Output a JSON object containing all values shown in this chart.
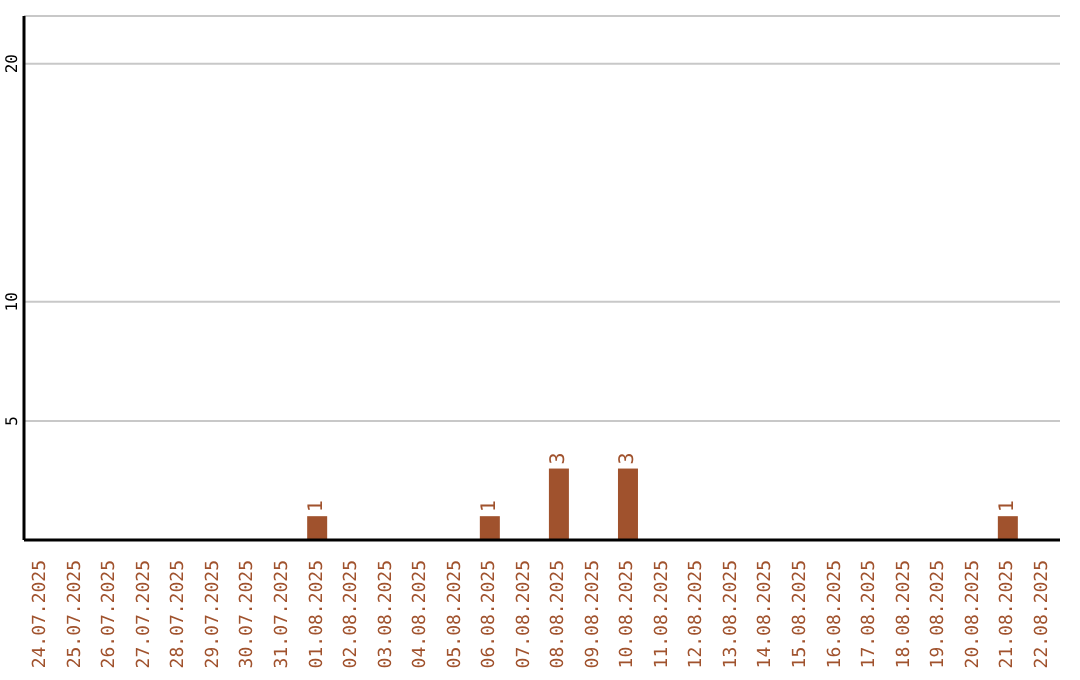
{
  "chart_data": {
    "type": "bar",
    "categories": [
      "24.07.2025",
      "25.07.2025",
      "26.07.2025",
      "27.07.2025",
      "28.07.2025",
      "29.07.2025",
      "30.07.2025",
      "31.07.2025",
      "01.08.2025",
      "02.08.2025",
      "03.08.2025",
      "04.08.2025",
      "05.08.2025",
      "06.08.2025",
      "07.08.2025",
      "08.08.2025",
      "09.08.2025",
      "10.08.2025",
      "11.08.2025",
      "12.08.2025",
      "13.08.2025",
      "14.08.2025",
      "15.08.2025",
      "16.08.2025",
      "17.08.2025",
      "18.08.2025",
      "19.08.2025",
      "20.08.2025",
      "21.08.2025",
      "22.08.2025"
    ],
    "values": [
      0,
      0,
      0,
      0,
      0,
      0,
      0,
      0,
      1,
      0,
      0,
      0,
      0,
      1,
      0,
      3,
      0,
      3,
      0,
      0,
      0,
      0,
      0,
      0,
      0,
      0,
      0,
      0,
      1,
      0
    ],
    "value_labels": [
      null,
      null,
      null,
      null,
      null,
      null,
      null,
      null,
      "1",
      null,
      null,
      null,
      null,
      "1",
      null,
      "3",
      null,
      "3",
      null,
      null,
      null,
      null,
      null,
      null,
      null,
      null,
      null,
      null,
      "1",
      null
    ],
    "color": "#a0522d",
    "ylim": [
      0,
      22
    ],
    "yticks": [
      5,
      10,
      20
    ],
    "grid": "y"
  }
}
